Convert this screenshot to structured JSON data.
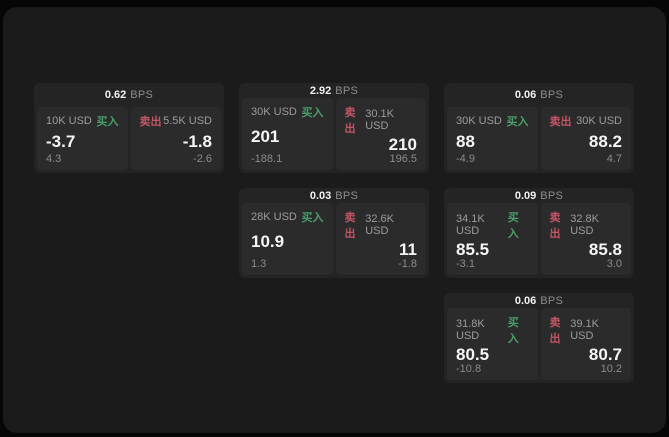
{
  "labels": {
    "buy": "买入",
    "sell": "卖出",
    "bps": "BPS"
  },
  "colors": {
    "page_bg": "#060606",
    "container_bg": "#1b1b1c",
    "card_bg": "#242425",
    "panel_bg": "#2b2b2c",
    "text_primary": "#f5f5f5",
    "text_muted": "#9c9c9c",
    "buy_green": "#4a9e6a",
    "sell_red": "#c25565"
  },
  "cards": [
    {
      "bps": "0.62",
      "buy": {
        "amount": "10K USD",
        "price": "-3.7",
        "delta": "4.3"
      },
      "sell": {
        "amount": "5.5K USD",
        "price": "-1.8",
        "delta": "-2.6"
      }
    },
    {
      "bps": "2.92",
      "buy": {
        "amount": "30K USD",
        "price": "201",
        "delta": "-188.1"
      },
      "sell": {
        "amount": "30.1K USD",
        "price": "210",
        "delta": "196.5"
      }
    },
    {
      "bps": "0.06",
      "buy": {
        "amount": "30K USD",
        "price": "88",
        "delta": "-4.9"
      },
      "sell": {
        "amount": "30K USD",
        "price": "88.2",
        "delta": "4.7"
      }
    },
    {
      "bps": "0.03",
      "buy": {
        "amount": "28K USD",
        "price": "10.9",
        "delta": "1.3"
      },
      "sell": {
        "amount": "32.6K USD",
        "price": "11",
        "delta": "-1.8"
      }
    },
    {
      "bps": "0.09",
      "buy": {
        "amount": "34.1K USD",
        "price": "85.5",
        "delta": "-3.1"
      },
      "sell": {
        "amount": "32.8K USD",
        "price": "85.8",
        "delta": "3.0"
      }
    },
    {
      "bps": "0.06",
      "buy": {
        "amount": "31.8K USD",
        "price": "80.5",
        "delta": "-10.8"
      },
      "sell": {
        "amount": "39.1K USD",
        "price": "80.7",
        "delta": "10.2"
      }
    }
  ]
}
